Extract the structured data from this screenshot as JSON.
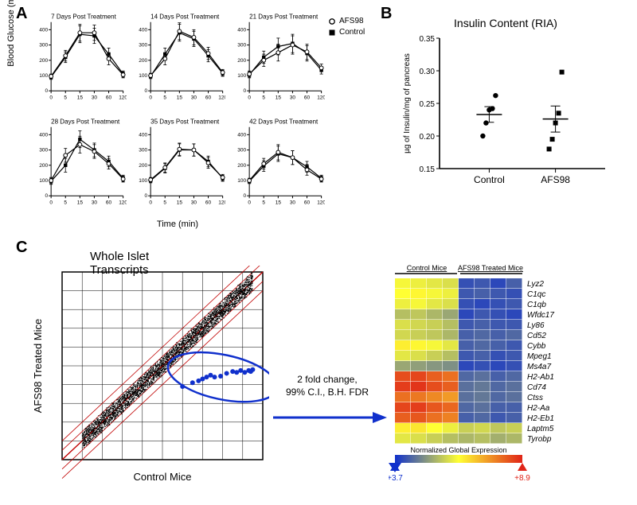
{
  "figure": {
    "label_A": "A",
    "label_B": "B",
    "label_C": "C"
  },
  "panelA": {
    "ylabel": "Blood Glucose (mg/dL)",
    "xlabel": "Time (min)",
    "legend": {
      "series1": "AFS98",
      "series2": "Control"
    },
    "xticks": [
      0,
      5,
      15,
      30,
      60,
      120
    ],
    "yticks": [
      0,
      100,
      200,
      300,
      400
    ],
    "ylim": [
      0,
      450
    ],
    "line_color": "#000000",
    "marker_afs98": "circle-open",
    "marker_control": "square-filled",
    "error_style": "bars",
    "charts": [
      {
        "title": "7 Days Post Treatment",
        "afs98": [
          95,
          230,
          380,
          380,
          210,
          105
        ],
        "control": [
          90,
          220,
          370,
          360,
          240,
          110
        ],
        "err": [
          15,
          35,
          55,
          50,
          40,
          20
        ]
      },
      {
        "title": "14 Days Post Treatment",
        "afs98": [
          100,
          210,
          390,
          350,
          245,
          120
        ],
        "control": [
          95,
          240,
          380,
          340,
          230,
          115
        ],
        "err": [
          15,
          40,
          55,
          50,
          40,
          20
        ]
      },
      {
        "title": "21 Days Post Treatment",
        "afs98": [
          110,
          200,
          250,
          300,
          255,
          150
        ],
        "control": [
          105,
          220,
          290,
          310,
          245,
          135
        ],
        "err": [
          20,
          40,
          55,
          60,
          50,
          25
        ]
      },
      {
        "title": "28 Days Post Treatment",
        "afs98": [
          100,
          265,
          335,
          290,
          210,
          110
        ],
        "control": [
          95,
          200,
          370,
          300,
          225,
          115
        ],
        "err": [
          20,
          45,
          55,
          45,
          35,
          20
        ]
      },
      {
        "title": "35 Days Post Treatment",
        "afs98": [
          105,
          185,
          305,
          300,
          215,
          120
        ],
        "control": [
          100,
          180,
          300,
          300,
          225,
          115
        ],
        "err": [
          15,
          30,
          40,
          40,
          35,
          20
        ]
      },
      {
        "title": "42 Days Post Treatment",
        "afs98": [
          100,
          210,
          285,
          250,
          170,
          110
        ],
        "control": [
          95,
          195,
          275,
          250,
          190,
          115
        ],
        "err": [
          15,
          35,
          50,
          45,
          35,
          20
        ]
      }
    ]
  },
  "panelB": {
    "title": "Insulin Content (RIA)",
    "ylabel": "µg of Insulin/mg of pancreas",
    "categories": [
      "Control",
      "AFS98"
    ],
    "ylim": [
      0.15,
      0.35
    ],
    "yticks": [
      0.15,
      0.2,
      0.25,
      0.3,
      0.35
    ],
    "marker_control": "circle-filled",
    "marker_afs98": "square-filled",
    "color": "#000000",
    "title_fontsize": 14,
    "label_fontsize": 11,
    "points": {
      "Control": [
        0.2,
        0.22,
        0.24,
        0.242,
        0.262
      ],
      "AFS98": [
        0.18,
        0.195,
        0.22,
        0.235,
        0.298
      ]
    },
    "mean_sem": {
      "Control": {
        "mean": 0.233,
        "sem": 0.012
      },
      "AFS98": {
        "mean": 0.226,
        "sem": 0.02
      }
    }
  },
  "panelC": {
    "scatter": {
      "title": "Whole Islet Transcripts",
      "xlabel": "Control Mice",
      "ylabel": "AFS98 Treated Mice",
      "xlim": [
        -5,
        15
      ],
      "ylim": [
        -5,
        15
      ],
      "grid_color": "#000000",
      "diagonal_color": "#c00000",
      "point_color": "#000000",
      "highlight_color": "#1030cc",
      "annotation": "2 fold change,\n99% C.I., B.H. FDR",
      "highlight_points": [
        [
          7.0,
          2.8
        ],
        [
          8.0,
          3.2
        ],
        [
          8.6,
          3.4
        ],
        [
          9.0,
          3.6
        ],
        [
          9.4,
          3.8
        ],
        [
          9.8,
          4.0
        ],
        [
          10.2,
          3.8
        ],
        [
          10.8,
          3.9
        ],
        [
          11.4,
          4.2
        ],
        [
          12.0,
          4.4
        ],
        [
          12.4,
          4.3
        ],
        [
          12.8,
          4.5
        ],
        [
          13.2,
          4.3
        ],
        [
          13.6,
          4.5
        ],
        [
          13.8,
          4.4
        ],
        [
          14.0,
          4.6
        ]
      ]
    },
    "heatmap": {
      "col_groups": [
        "Control Mice",
        "AFS98 Treated Mice"
      ],
      "n_cols_per_group": 4,
      "genes": [
        "Lyz2",
        "C1qc",
        "C1qb",
        "Wfdc17",
        "Ly86",
        "Cd52",
        "Cybb",
        "Mpeg1",
        "Ms4a7",
        "H2-Ab1",
        "Cd74",
        "Ctss",
        "H2-Aa",
        "H2-Eb1",
        "Laptm5",
        "Tyrobp"
      ],
      "scale_label": "Normalized Global Expression",
      "scale_min": 3.7,
      "scale_max": 8.9,
      "colormap": {
        "low": "#1030cc",
        "mid": "#ffff33",
        "high": "#e02418"
      },
      "values": [
        [
          6.2,
          6.1,
          6.0,
          5.9,
          4.1,
          4.2,
          4.0,
          4.3
        ],
        [
          6.3,
          6.4,
          6.2,
          6.1,
          4.2,
          4.3,
          4.2,
          4.1
        ],
        [
          6.1,
          6.2,
          6.0,
          5.9,
          4.1,
          4.0,
          4.1,
          4.2
        ],
        [
          5.5,
          5.6,
          5.4,
          5.2,
          4.0,
          4.2,
          4.1,
          4.0
        ],
        [
          5.9,
          5.8,
          5.7,
          5.5,
          4.2,
          4.3,
          4.2,
          4.2
        ],
        [
          5.8,
          5.7,
          5.6,
          5.4,
          4.3,
          4.4,
          4.3,
          4.4
        ],
        [
          6.5,
          6.4,
          6.2,
          6.0,
          4.3,
          4.4,
          4.3,
          4.2
        ],
        [
          6.0,
          5.9,
          5.7,
          5.5,
          4.2,
          4.3,
          4.1,
          4.2
        ],
        [
          5.2,
          5.1,
          5.0,
          4.9,
          4.0,
          4.1,
          4.0,
          4.1
        ],
        [
          8.4,
          8.5,
          8.2,
          8.0,
          4.4,
          4.5,
          4.3,
          4.4
        ],
        [
          8.6,
          8.7,
          8.4,
          8.2,
          4.5,
          4.6,
          4.4,
          4.5
        ],
        [
          8.0,
          7.9,
          7.7,
          7.5,
          4.5,
          4.6,
          4.4,
          4.5
        ],
        [
          8.5,
          8.6,
          8.3,
          8.1,
          4.4,
          4.5,
          4.3,
          4.3
        ],
        [
          8.2,
          8.3,
          8.0,
          7.8,
          4.3,
          4.4,
          4.2,
          4.3
        ],
        [
          6.5,
          6.6,
          6.3,
          6.1,
          5.7,
          5.8,
          5.6,
          5.7
        ],
        [
          6.0,
          5.9,
          5.7,
          5.5,
          5.4,
          5.5,
          5.3,
          5.4
        ]
      ]
    }
  }
}
